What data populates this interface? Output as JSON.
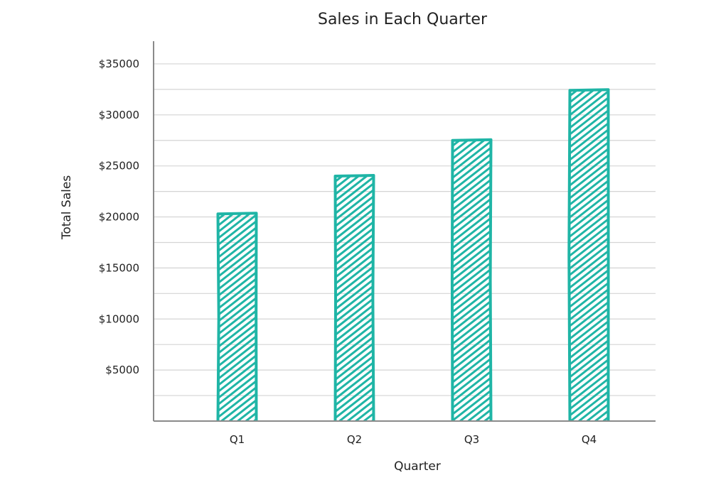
{
  "chart_data": {
    "type": "bar",
    "title": "Sales in Each Quarter",
    "xlabel": "Quarter",
    "ylabel": "Total Sales",
    "categories": [
      "Q1",
      "Q2",
      "Q3",
      "Q4"
    ],
    "values": [
      20300,
      24000,
      27500,
      32400
    ],
    "ylim": [
      0,
      37500
    ],
    "yticks": [
      5000,
      10000,
      15000,
      20000,
      25000,
      30000,
      35000
    ],
    "ytick_labels": [
      "$5000",
      "$10000",
      "$15000",
      "$20000",
      "$25000",
      "$30000",
      "$35000"
    ],
    "grid": true,
    "bar_color": "#1fb5a6",
    "style": "hand-drawn hatched"
  }
}
